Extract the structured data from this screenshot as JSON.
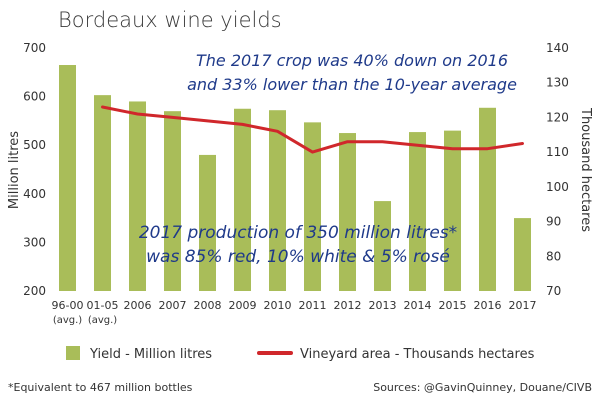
{
  "chart_data": {
    "type": "bar",
    "title": "Bordeaux wine yields",
    "ylabel": "Million litres",
    "y2label": "Thousand hectares",
    "ylim": [
      200,
      700
    ],
    "y2lim": [
      70,
      140
    ],
    "yticks": [
      "200",
      "300",
      "400",
      "500",
      "600",
      "700"
    ],
    "y2ticks": [
      "70",
      "80",
      "90",
      "100",
      "110",
      "120",
      "130",
      "140"
    ],
    "categories": [
      "96-00",
      "01-05",
      "2006",
      "2007",
      "2008",
      "2009",
      "2010",
      "2011",
      "2012",
      "2013",
      "2014",
      "2015",
      "2016",
      "2017"
    ],
    "category_sublabels": [
      "(avg.)",
      "(avg.)",
      "",
      "",
      "",
      "",
      "",
      "",
      "",
      "",
      "",
      "",
      "",
      ""
    ],
    "series": [
      {
        "name": "Yield - Million litres",
        "type": "bar",
        "axis": "left",
        "color": "#a9bd59",
        "values": [
          665,
          603,
          590,
          570,
          480,
          575,
          572,
          547,
          525,
          385,
          527,
          530,
          577,
          350
        ]
      },
      {
        "name": "Vineyard area - Thousands hectares",
        "type": "line",
        "axis": "right",
        "color": "#d0272b",
        "values": [
          null,
          123,
          121,
          120,
          119,
          118,
          116,
          110,
          113,
          113,
          112,
          111,
          111,
          112.5
        ]
      }
    ],
    "annotations": [
      {
        "line1": "The 2017 crop was 40% down on 2016",
        "line2": "and 33% lower than the 10-year average"
      },
      {
        "line1": "2017 production of 350 million litres*",
        "line2": "was 85% red, 10% white & 5% rosé"
      }
    ],
    "grid": false,
    "legend": "bottom"
  },
  "footer": {
    "note": "*Equivalent to 467 million bottles",
    "sources": "Sources: @GavinQuinney, Douane/CIVB"
  }
}
